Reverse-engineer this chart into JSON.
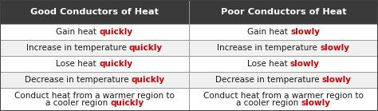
{
  "header": [
    "Good Conductors of Heat",
    "Poor Conductors of Heat"
  ],
  "rows": [
    [
      [
        "Gain heat ",
        "quickly"
      ],
      [
        "Gain heat ",
        "slowly"
      ]
    ],
    [
      [
        "Increase in temperature ",
        "quickly"
      ],
      [
        "Increase in temperature ",
        "slowly"
      ]
    ],
    [
      [
        "Lose heat ",
        "quickly"
      ],
      [
        "Lose heat ",
        "slowly"
      ]
    ],
    [
      [
        "Decrease in temperature ",
        "quickly"
      ],
      [
        "Decrease in temperature ",
        "slowly"
      ]
    ],
    [
      [
        "Conduct heat from a warmer region to\na cooler region ",
        "quickly"
      ],
      [
        "Conduct heat from a warmer region to\na cooler region ",
        "slowly"
      ]
    ]
  ],
  "header_bg": "#3a3a3a",
  "header_text_color": "#ffffff",
  "row_bg_even": "#ffffff",
  "row_bg_odd": "#f0f0f0",
  "normal_text_color": "#1a1a1a",
  "highlight_text_color": "#cc0000",
  "border_color": "#999999",
  "figsize": [
    4.74,
    1.39
  ],
  "dpi": 100,
  "font_size_header": 8.2,
  "font_size_body": 7.5
}
